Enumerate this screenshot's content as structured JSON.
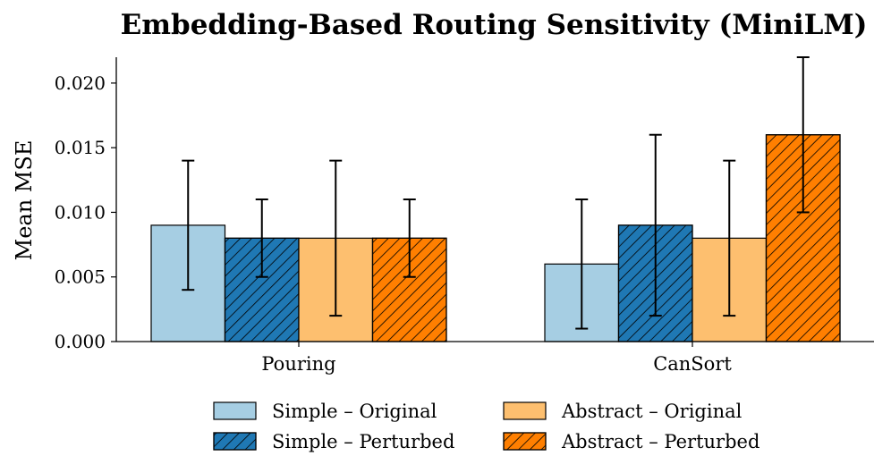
{
  "chart_data": {
    "type": "bar",
    "title": "Embedding-Based Routing Sensitivity (MiniLM)",
    "xlabel": "",
    "ylabel": "Mean MSE",
    "categories": [
      "Pouring",
      "CanSort"
    ],
    "ylim": [
      0,
      0.022
    ],
    "yticks": [
      "0.000",
      "0.005",
      "0.010",
      "0.015",
      "0.020"
    ],
    "ytick_values": [
      0,
      0.005,
      0.01,
      0.015,
      0.02
    ],
    "legend_position": "bottom",
    "series": [
      {
        "name": "Simple – Original",
        "color": "#a6cee3",
        "hatch": false,
        "values": [
          0.009,
          0.006
        ],
        "err_low": [
          0.004,
          0.001
        ],
        "err_high": [
          0.014,
          0.011
        ]
      },
      {
        "name": "Simple – Perturbed",
        "color": "#1f78b4",
        "hatch": true,
        "values": [
          0.008,
          0.009
        ],
        "err_low": [
          0.005,
          0.002
        ],
        "err_high": [
          0.011,
          0.016
        ]
      },
      {
        "name": "Abstract – Original",
        "color": "#fdbf6f",
        "hatch": false,
        "values": [
          0.008,
          0.008
        ],
        "err_low": [
          0.002,
          0.002
        ],
        "err_high": [
          0.014,
          0.014
        ]
      },
      {
        "name": "Abstract – Perturbed",
        "color": "#ff7f00",
        "hatch": true,
        "values": [
          0.008,
          0.016
        ],
        "err_low": [
          0.005,
          0.01
        ],
        "err_high": [
          0.011,
          0.022
        ]
      }
    ]
  }
}
